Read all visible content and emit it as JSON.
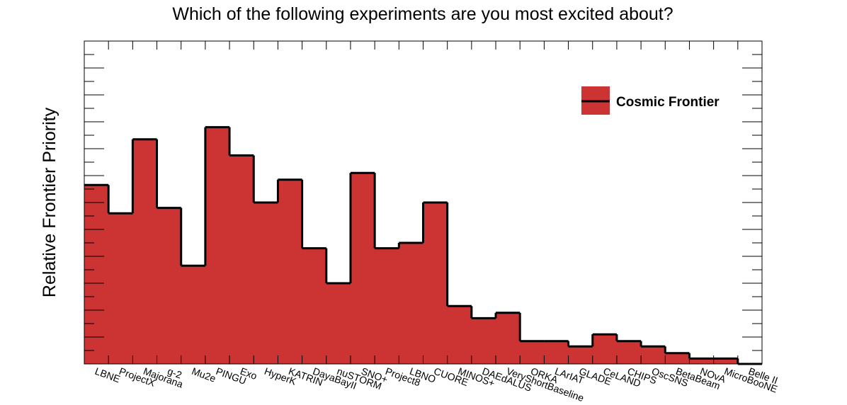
{
  "chart_data": {
    "type": "bar",
    "title": "Which of the following experiments are you most excited about?",
    "y_label": "Relative Frontier Priority",
    "categories": [
      "LBNE",
      "ProjectX",
      "Majorana",
      "g-2",
      "Mu2e",
      "PINGU",
      "Exo",
      "HyperK",
      "KATRIN",
      "DayaBayII",
      "nuSTORM",
      "SNO+",
      "Project8",
      "LBNO",
      "CUORE",
      "MINOS+",
      "DAEdALUS",
      "VeryShortBaseline",
      "ORKA",
      "LArIAT",
      "GLADE",
      "CeLAND",
      "CHIPS",
      "OscSNS",
      "BetaBeam",
      "NOvA",
      "MicroBooNE",
      "Belle II"
    ],
    "series": [
      {
        "name": "Cosmic Frontier",
        "color": "#cc3333",
        "values": [
          13.3,
          11.2,
          16.7,
          11.6,
          7.3,
          17.6,
          15.5,
          12.0,
          13.7,
          8.6,
          6.0,
          14.2,
          8.6,
          9.0,
          12.0,
          4.3,
          3.4,
          3.8,
          1.7,
          1.7,
          1.3,
          2.2,
          1.7,
          1.3,
          0.8,
          0.4,
          0.4,
          0
        ]
      }
    ],
    "ylim": [
      0,
      24
    ],
    "yticks": [
      0,
      1,
      2,
      3,
      4,
      5,
      6,
      7,
      8,
      9,
      10,
      11,
      12,
      13,
      14,
      15,
      16,
      17,
      18,
      19,
      20,
      21,
      22,
      23,
      24
    ],
    "legend": "top-right"
  }
}
